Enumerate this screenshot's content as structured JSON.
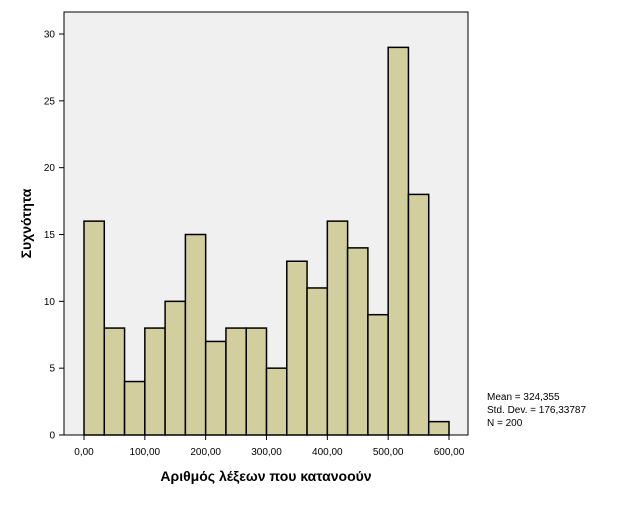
{
  "chart_data": {
    "type": "bar",
    "title": "",
    "xlabel": "Αριθμός λέξεων που κατανοούν",
    "ylabel": "Συχνότητα",
    "bin_width": 33.33,
    "x_range": [
      0,
      600
    ],
    "ylim": [
      0,
      30
    ],
    "bins": [
      {
        "start": 0,
        "end": 33.33,
        "count": 16
      },
      {
        "start": 33.33,
        "end": 66.67,
        "count": 8
      },
      {
        "start": 66.67,
        "end": 100,
        "count": 4
      },
      {
        "start": 100,
        "end": 133.33,
        "count": 8
      },
      {
        "start": 133.33,
        "end": 166.67,
        "count": 10
      },
      {
        "start": 166.67,
        "end": 200,
        "count": 15
      },
      {
        "start": 200,
        "end": 233.33,
        "count": 7
      },
      {
        "start": 233.33,
        "end": 266.67,
        "count": 8
      },
      {
        "start": 266.67,
        "end": 300,
        "count": 8
      },
      {
        "start": 300,
        "end": 333.33,
        "count": 5
      },
      {
        "start": 333.33,
        "end": 366.67,
        "count": 13
      },
      {
        "start": 366.67,
        "end": 400,
        "count": 11
      },
      {
        "start": 400,
        "end": 433.33,
        "count": 16
      },
      {
        "start": 433.33,
        "end": 466.67,
        "count": 14
      },
      {
        "start": 466.67,
        "end": 500,
        "count": 9
      },
      {
        "start": 500,
        "end": 533.33,
        "count": 29
      },
      {
        "start": 533.33,
        "end": 566.67,
        "count": 18
      },
      {
        "start": 566.67,
        "end": 600,
        "count": 1
      }
    ],
    "x_ticks": [
      {
        "value": 0,
        "label": "0,00"
      },
      {
        "value": 100,
        "label": "100,00"
      },
      {
        "value": 200,
        "label": "200,00"
      },
      {
        "value": 300,
        "label": "300,00"
      },
      {
        "value": 400,
        "label": "400,00"
      },
      {
        "value": 500,
        "label": "500,00"
      },
      {
        "value": 600,
        "label": "600,00"
      }
    ],
    "y_ticks": [
      {
        "value": 0,
        "label": "0"
      },
      {
        "value": 5,
        "label": "5"
      },
      {
        "value": 10,
        "label": "10"
      },
      {
        "value": 15,
        "label": "15"
      },
      {
        "value": 20,
        "label": "20"
      },
      {
        "value": 25,
        "label": "25"
      },
      {
        "value": 30,
        "label": "30"
      }
    ],
    "stats": [
      "Mean = 324,355",
      "Std. Dev. = 176,33787",
      "N = 200"
    ],
    "grid": false,
    "colors": {
      "bar_fill": "#d3ce9e",
      "bar_stroke": "#000000",
      "plot_background": "#f0f0f0",
      "page_background": "#ffffff"
    }
  }
}
